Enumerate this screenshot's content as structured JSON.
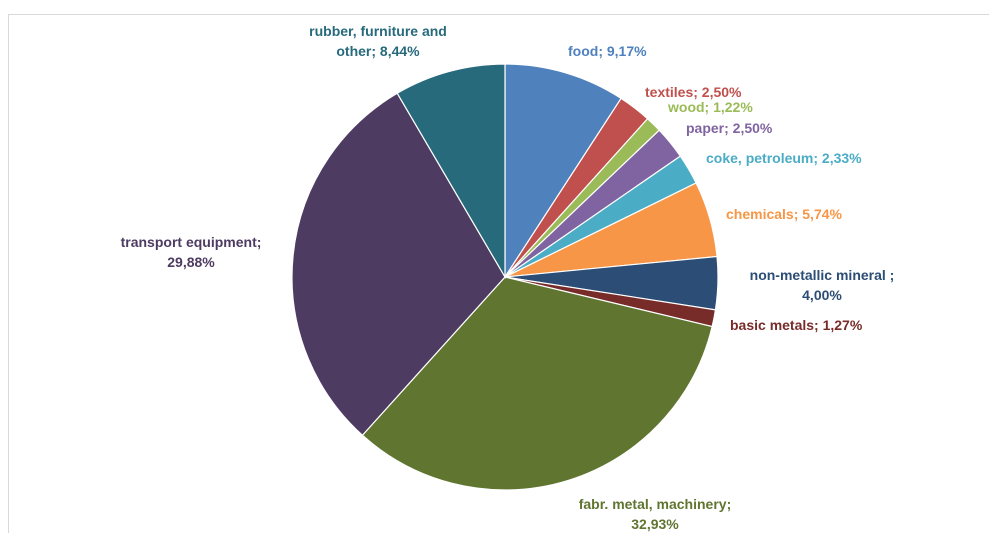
{
  "chart_data": {
    "type": "pie",
    "slices": [
      {
        "label": "food",
        "value": 9.17,
        "value_text": "9,17%",
        "color": "#4F81BD"
      },
      {
        "label": "textiles",
        "value": 2.5,
        "value_text": "2,50%",
        "color": "#C0504D"
      },
      {
        "label": "wood",
        "value": 1.22,
        "value_text": "1,22%",
        "color": "#9BBB59"
      },
      {
        "label": "paper",
        "value": 2.5,
        "value_text": "2,50%",
        "color": "#8064A2"
      },
      {
        "label": "coke, petroleum",
        "value": 2.33,
        "value_text": "2,33%",
        "color": "#4BACC6"
      },
      {
        "label": "chemicals",
        "value": 5.74,
        "value_text": "5,74%",
        "color": "#F79646"
      },
      {
        "label": "non-metallic mineral ",
        "value": 4.0,
        "value_text": "4,00%",
        "color": "#2C4D75"
      },
      {
        "label": "basic metals",
        "value": 1.27,
        "value_text": "1,27%",
        "color": "#772C2A"
      },
      {
        "label": "fabr. metal, machinery",
        "value": 32.93,
        "value_text": "32,93%",
        "color": "#5F7530"
      },
      {
        "label": "transport equipment",
        "value": 29.88,
        "value_text": "29,88%",
        "color": "#4D3B62"
      },
      {
        "label": "rubber, furniture and other",
        "value": 8.44,
        "value_text": "8,44%",
        "color": "#276A7C"
      }
    ],
    "start_angle": "12 o'clock",
    "direction": "clockwise",
    "legend": "none",
    "border_color": "#D9D9D9"
  }
}
